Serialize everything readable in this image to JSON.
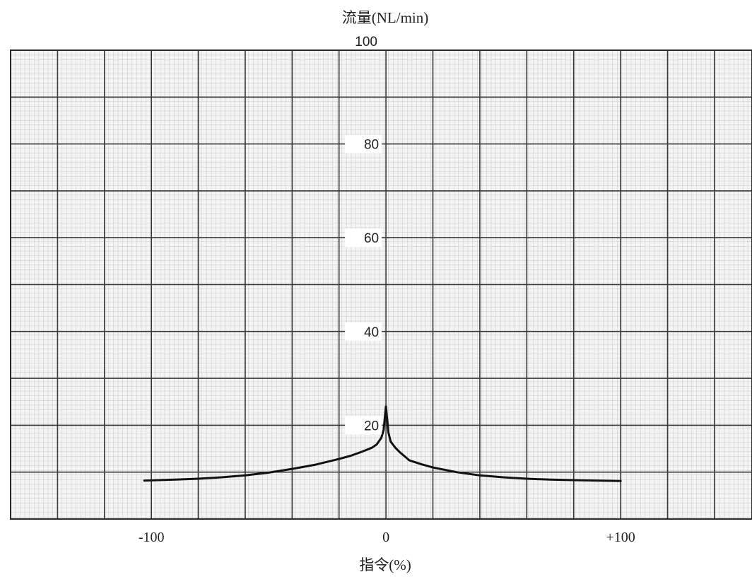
{
  "chart_data": {
    "type": "line",
    "title": "",
    "ylabel": "流量(NL/min)",
    "xlabel": "指令(%)",
    "xlim": [
      -160,
      156
    ],
    "ylim": [
      0,
      100
    ],
    "x_ticks": [
      -100,
      0,
      100
    ],
    "x_tick_labels": [
      "-100",
      "0",
      "+100"
    ],
    "y_ticks": [
      20,
      40,
      60,
      80,
      100
    ],
    "y_tick_labels": [
      "20",
      "40",
      "60",
      "80",
      "100"
    ],
    "grid": true,
    "legend": "none",
    "series": [
      {
        "color": "#111111",
        "x": [
          -103,
          -90,
          -80,
          -70,
          -60,
          -50,
          -40,
          -30,
          -20,
          -15,
          -10,
          -6,
          -4,
          -2,
          -1,
          0,
          1,
          2,
          4,
          6,
          10,
          15,
          20,
          30,
          40,
          50,
          60,
          70,
          80,
          90,
          100
        ],
        "y": [
          8.2,
          8.4,
          8.6,
          8.9,
          9.3,
          9.9,
          10.7,
          11.6,
          12.8,
          13.5,
          14.4,
          15.2,
          15.9,
          17.3,
          19.0,
          24.0,
          18.5,
          16.5,
          15.2,
          14.2,
          12.5,
          11.7,
          11.0,
          10.0,
          9.3,
          8.9,
          8.6,
          8.4,
          8.3,
          8.2,
          8.1
        ]
      }
    ]
  }
}
